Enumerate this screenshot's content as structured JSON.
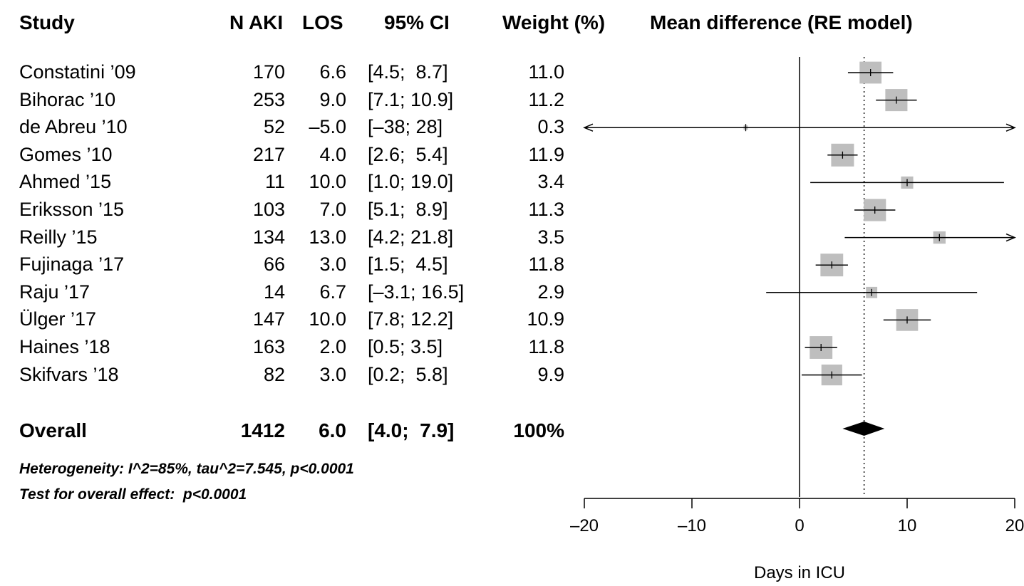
{
  "chart_data": {
    "type": "forest",
    "headers": {
      "study": "Study",
      "n_aki": "N AKI",
      "los": "LOS",
      "ci": "95% CI",
      "weight": "Weight (%)",
      "plot": "Mean difference (RE model)"
    },
    "studies": [
      {
        "name": "Constatini ’09",
        "n": "170",
        "los": "6.6",
        "ci": "[4.5;  8.7]",
        "weight": "11.0",
        "mean": 6.6,
        "lower": 4.5,
        "upper": 8.7,
        "w": 11.0
      },
      {
        "name": "Bihorac ’10",
        "n": "253",
        "los": "9.0",
        "ci": "[7.1; 10.9]",
        "weight": "11.2",
        "mean": 9.0,
        "lower": 7.1,
        "upper": 10.9,
        "w": 11.2
      },
      {
        "name": "de Abreu ’10",
        "n": "52",
        "los": "–5.0",
        "ci": "[–38; 28]",
        "weight": "0.3",
        "mean": -5.0,
        "lower": -38,
        "upper": 28,
        "w": 0.3
      },
      {
        "name": "Gomes ’10",
        "n": "217",
        "los": "4.0",
        "ci": "[2.6;  5.4]",
        "weight": "11.9",
        "mean": 4.0,
        "lower": 2.6,
        "upper": 5.4,
        "w": 11.9
      },
      {
        "name": "Ahmed ’15",
        "n": "11",
        "los": "10.0",
        "ci": "[1.0; 19.0]",
        "weight": "3.4",
        "mean": 10.0,
        "lower": 1.0,
        "upper": 19.0,
        "w": 3.4
      },
      {
        "name": "Eriksson ’15",
        "n": "103",
        "los": "7.0",
        "ci": "[5.1;  8.9]",
        "weight": "11.3",
        "mean": 7.0,
        "lower": 5.1,
        "upper": 8.9,
        "w": 11.3
      },
      {
        "name": "Reilly ’15",
        "n": "134",
        "los": "13.0",
        "ci": "[4.2; 21.8]",
        "weight": "3.5",
        "mean": 13.0,
        "lower": 4.2,
        "upper": 21.8,
        "w": 3.5
      },
      {
        "name": "Fujinaga ’17",
        "n": "66",
        "los": "3.0",
        "ci": "[1.5;  4.5]",
        "weight": "11.8",
        "mean": 3.0,
        "lower": 1.5,
        "upper": 4.5,
        "w": 11.8
      },
      {
        "name": "Raju ’17",
        "n": "14",
        "los": "6.7",
        "ci": "[–3.1; 16.5]",
        "weight": "2.9",
        "mean": 6.7,
        "lower": -3.1,
        "upper": 16.5,
        "w": 2.9
      },
      {
        "name": "Ülger ’17",
        "n": "147",
        "los": "10.0",
        "ci": "[7.8; 12.2]",
        "weight": "10.9",
        "mean": 10.0,
        "lower": 7.8,
        "upper": 12.2,
        "w": 10.9
      },
      {
        "name": "Haines ’18",
        "n": "163",
        "los": "2.0",
        "ci": "[0.5; 3.5]",
        "weight": "11.8",
        "mean": 2.0,
        "lower": 0.5,
        "upper": 3.5,
        "w": 11.8
      },
      {
        "name": "Skifvars ’18",
        "n": "82",
        "los": "3.0",
        "ci": "[0.2;  5.8]",
        "weight": "9.9",
        "mean": 3.0,
        "lower": 0.2,
        "upper": 5.8,
        "w": 9.9
      }
    ],
    "overall": {
      "label": "Overall",
      "n": "1412",
      "los": "6.0",
      "ci": "[4.0;  7.9]",
      "weight": "100%",
      "mean": 6.0,
      "lower": 4.0,
      "upper": 7.9
    },
    "notes": [
      "Heterogeneity: I^2=85%, tau^2=7.545, p<0.0001",
      "Test for overall effect:  p<0.0001"
    ],
    "xlim": [
      -20,
      20
    ],
    "xticks": [
      -20,
      -10,
      0,
      10,
      20
    ],
    "xtick_labels": [
      "–20",
      "–10",
      "0",
      "10",
      "20"
    ],
    "xlabel": "Days in ICU",
    "reference_line": 0,
    "overall_line": 6.0,
    "colors": {
      "box": "#bebebe",
      "line": "#000000",
      "diamond": "#000000"
    }
  }
}
